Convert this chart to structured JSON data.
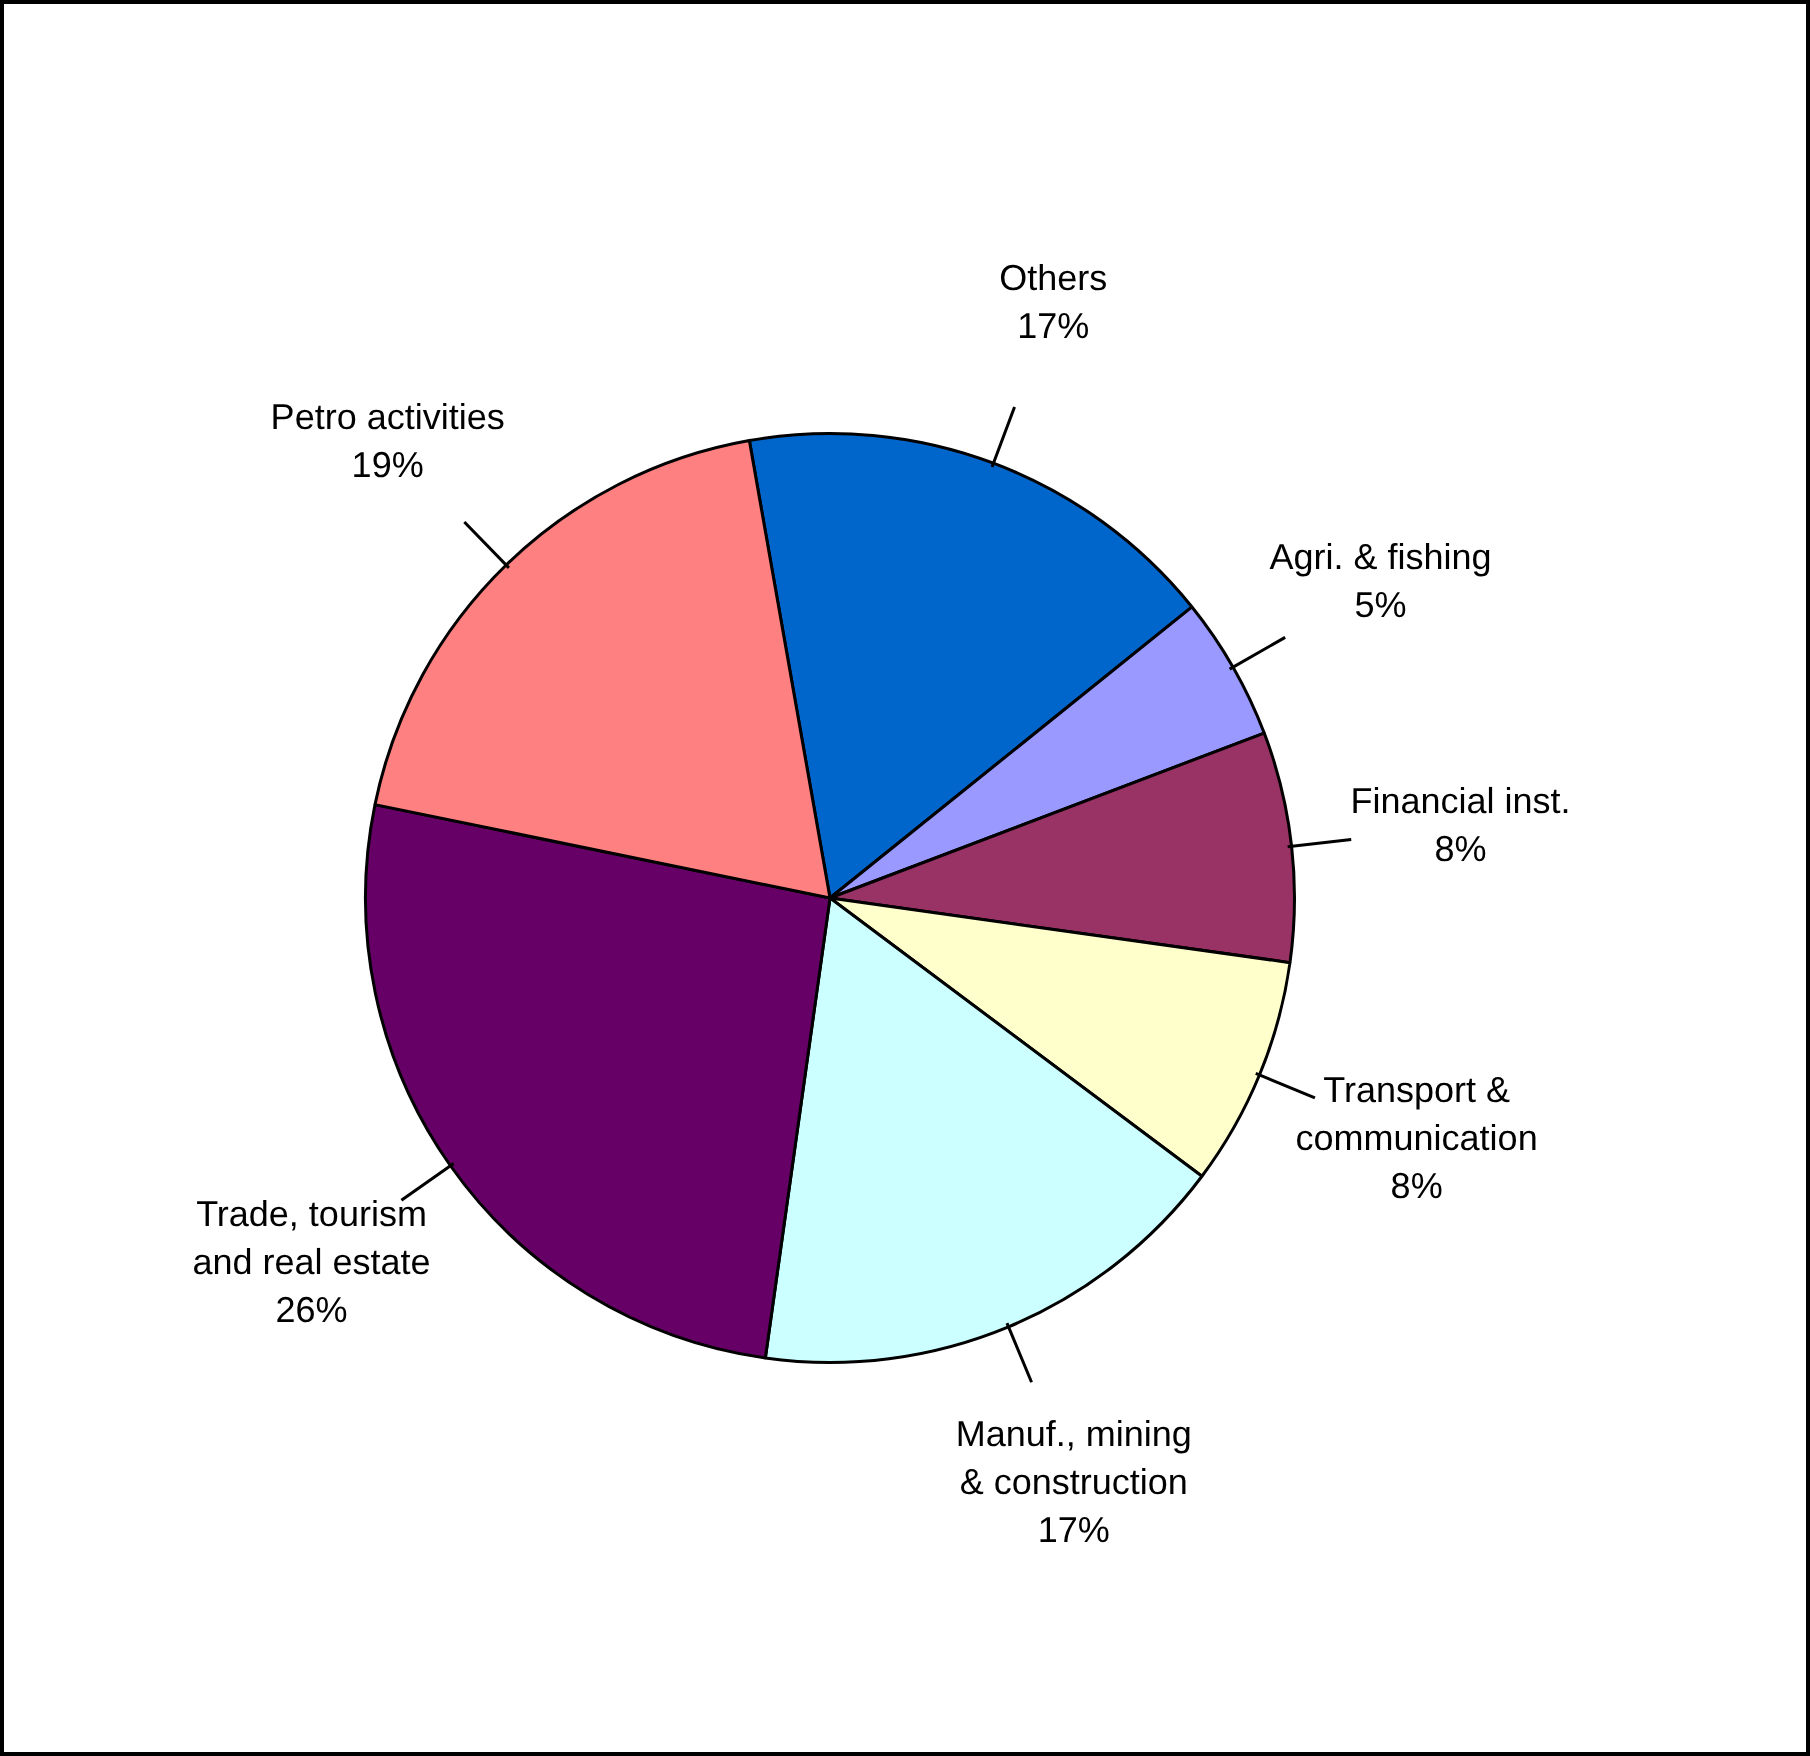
{
  "chart_data": {
    "type": "pie",
    "categories": [
      "Others",
      "Agri. & fishing",
      "Financial inst.",
      "Transport & communication",
      "Manuf., mining & construction",
      "Trade, tourism and real estate",
      "Petro activities"
    ],
    "values": [
      17,
      5,
      8,
      8,
      17,
      26,
      19
    ],
    "value_labels": [
      "17%",
      "5%",
      "8%",
      "8%",
      "17%",
      "26%",
      "19%"
    ],
    "colors": [
      "#0066cc",
      "#9999ff",
      "#993366",
      "#ffffcc",
      "#ccffff",
      "#660066",
      "#ff8080"
    ],
    "legend": false
  }
}
